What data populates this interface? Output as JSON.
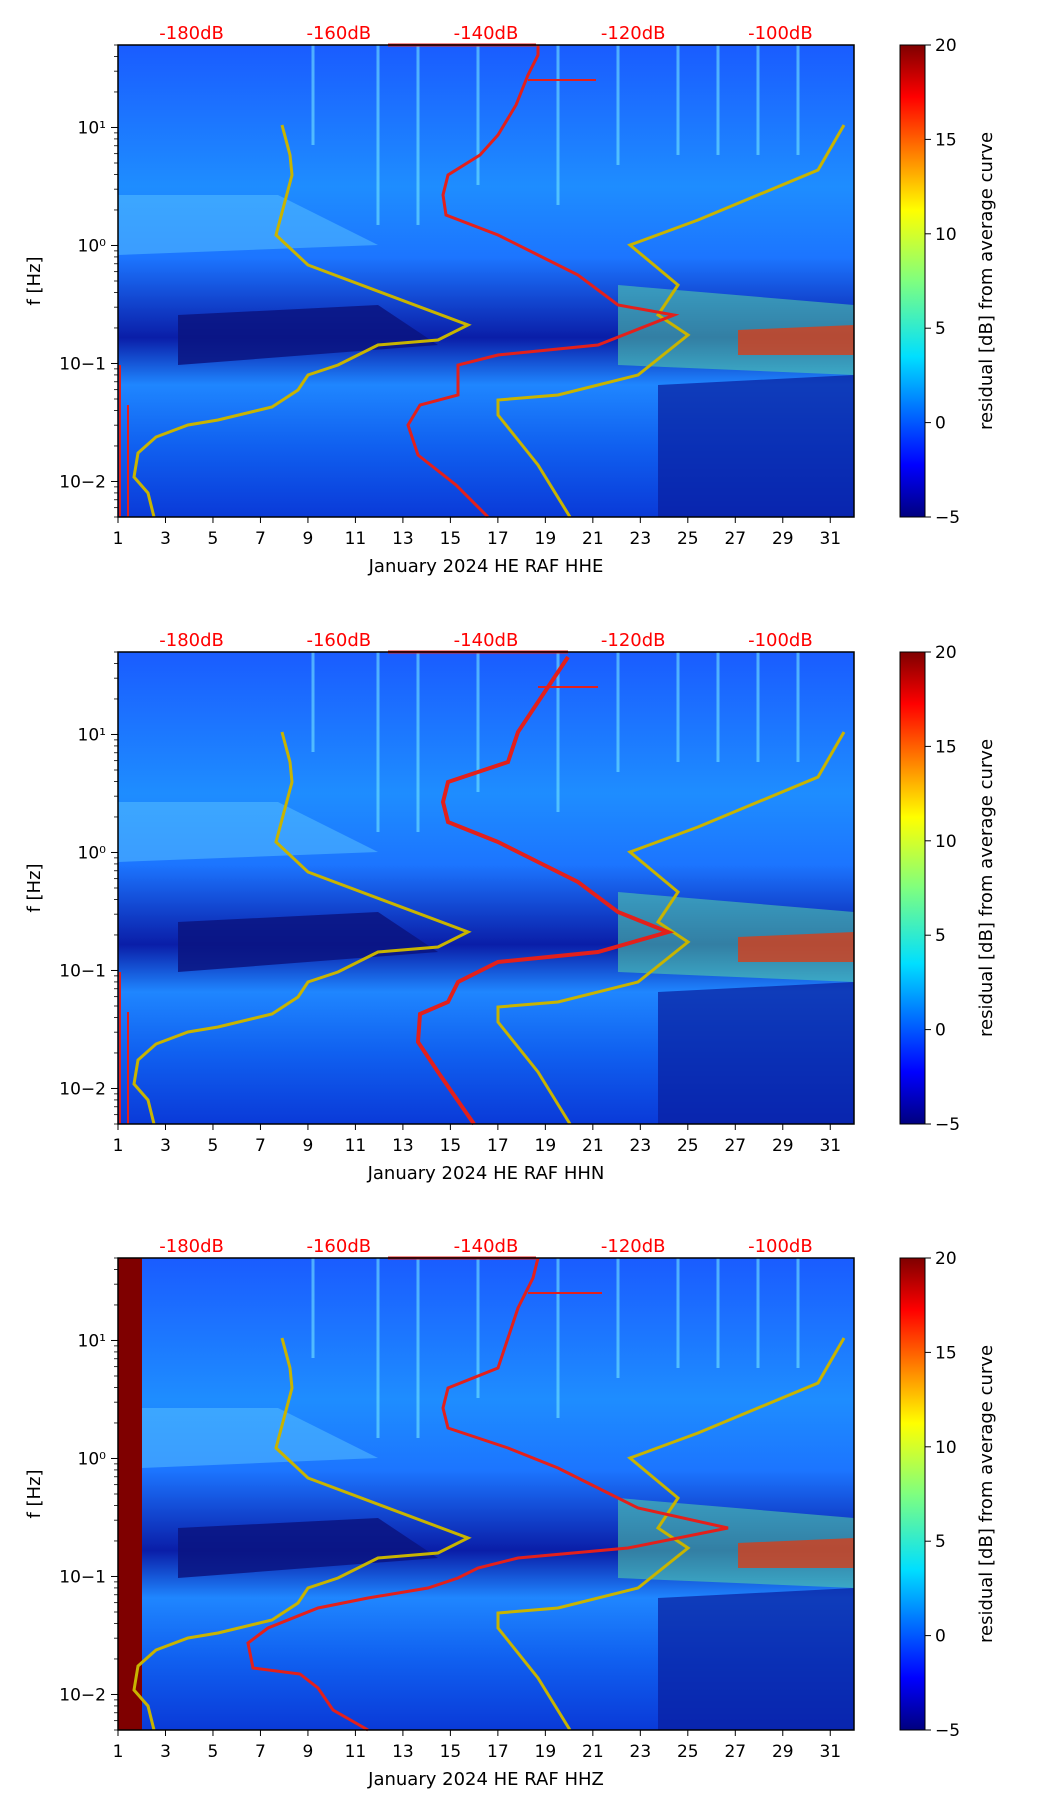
{
  "chart_data": [
    {
      "type": "heatmap",
      "xlabel": "January 2024 HE RAF  HHE",
      "ylabel": "f [Hz]",
      "x_ticks": [
        "1",
        "3",
        "5",
        "7",
        "9",
        "11",
        "13",
        "15",
        "17",
        "19",
        "21",
        "23",
        "25",
        "27",
        "29",
        "31"
      ],
      "y_ticks": [
        "10−2",
        "10−1",
        "10⁰",
        "10¹"
      ],
      "ylim": [
        0.005,
        50
      ],
      "top_labels": [
        "-180dB",
        "-160dB",
        "-140dB",
        "-120dB",
        "-100dB"
      ],
      "colorbar": {
        "label": "residual [dB] from average curve",
        "ticks": [
          "−5",
          "0",
          "5",
          "10",
          "15",
          "20"
        ],
        "range": [
          -5,
          20
        ]
      }
    },
    {
      "type": "heatmap",
      "xlabel": "January 2024 HE RAF  HHN",
      "ylabel": "f [Hz]",
      "x_ticks": [
        "1",
        "3",
        "5",
        "7",
        "9",
        "11",
        "13",
        "15",
        "17",
        "19",
        "21",
        "23",
        "25",
        "27",
        "29",
        "31"
      ],
      "y_ticks": [
        "10−2",
        "10−1",
        "10⁰",
        "10¹"
      ],
      "ylim": [
        0.005,
        50
      ],
      "top_labels": [
        "-180dB",
        "-160dB",
        "-140dB",
        "-120dB",
        "-100dB"
      ],
      "colorbar": {
        "label": "residual [dB] from average curve",
        "ticks": [
          "−5",
          "0",
          "5",
          "10",
          "15",
          "20"
        ],
        "range": [
          -5,
          20
        ]
      }
    },
    {
      "type": "heatmap",
      "xlabel": "January 2024 HE RAF  HHZ",
      "ylabel": "f [Hz]",
      "x_ticks": [
        "1",
        "3",
        "5",
        "7",
        "9",
        "11",
        "13",
        "15",
        "17",
        "19",
        "21",
        "23",
        "25",
        "27",
        "29",
        "31"
      ],
      "y_ticks": [
        "10−2",
        "10−1",
        "10⁰",
        "10¹"
      ],
      "ylim": [
        0.005,
        50
      ],
      "top_labels": [
        "-180dB",
        "-160dB",
        "-140dB",
        "-120dB",
        "-100dB"
      ],
      "colorbar": {
        "label": "residual [dB] from average curve",
        "ticks": [
          "−5",
          "0",
          "5",
          "10",
          "15",
          "20"
        ],
        "range": [
          -5,
          20
        ]
      }
    }
  ],
  "colors": {
    "low": "#00007f",
    "high": "#7f0000",
    "curve_red": "#e3201b",
    "curve_yellow": "#c8b400",
    "top_label": "#ff0000"
  }
}
